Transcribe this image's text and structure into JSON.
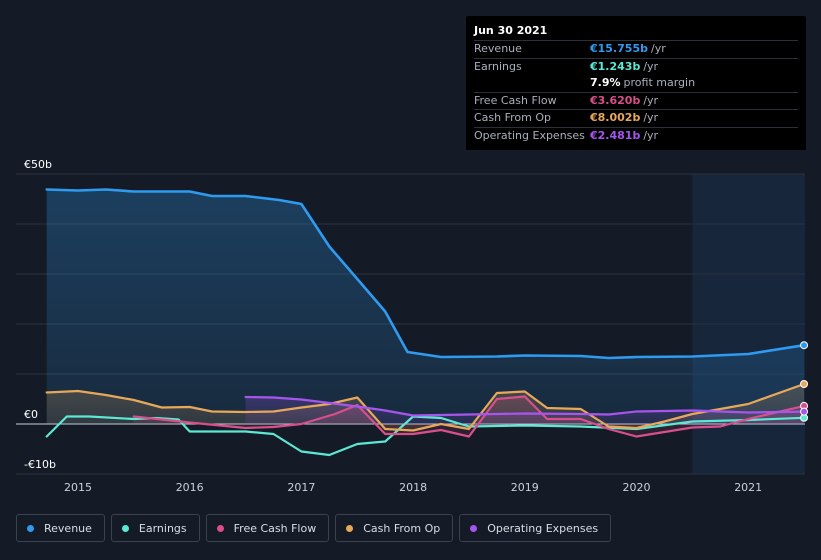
{
  "tooltip": {
    "date": "Jun 30 2021",
    "rows": [
      {
        "name": "Revenue",
        "value": "€15.755b",
        "unit": "/yr",
        "color": "#2e9bf0"
      },
      {
        "name": "Earnings",
        "value": "€1.243b",
        "unit": "/yr",
        "color": "#5de8d4"
      },
      {
        "name": "",
        "value": "7.9%",
        "unit": "profit margin",
        "color": "#ffffff"
      },
      {
        "name": "Free Cash Flow",
        "value": "€3.620b",
        "unit": "/yr",
        "color": "#d94f8c"
      },
      {
        "name": "Cash From Op",
        "value": "€8.002b",
        "unit": "/yr",
        "color": "#e8a85a"
      },
      {
        "name": "Operating Expenses",
        "value": "€2.481b",
        "unit": "/yr",
        "color": "#a855f0"
      }
    ]
  },
  "legend": [
    {
      "label": "Revenue",
      "color": "#2e9bf0"
    },
    {
      "label": "Earnings",
      "color": "#5de8d4"
    },
    {
      "label": "Free Cash Flow",
      "color": "#d94f8c"
    },
    {
      "label": "Cash From Op",
      "color": "#e8a85a"
    },
    {
      "label": "Operating Expenses",
      "color": "#a855f0"
    }
  ],
  "chart_data": {
    "type": "line",
    "ylim": [
      -10,
      50
    ],
    "y_tick_labels": [
      {
        "value": 50,
        "label": "€50b"
      },
      {
        "value": 0,
        "label": "€0"
      },
      {
        "value": -10,
        "label": "-€10b"
      }
    ],
    "xlim": [
      2014.72,
      2021.5
    ],
    "x_ticks": [
      2015,
      2016,
      2017,
      2018,
      2019,
      2020,
      2021
    ],
    "x_tick_labels": [
      "2015",
      "2016",
      "2017",
      "2018",
      "2019",
      "2020",
      "2021"
    ],
    "highlight_start": 2020.5,
    "grid": true,
    "series": [
      {
        "name": "Revenue",
        "color": "#2e9bf0",
        "fill": true,
        "points": [
          [
            2014.72,
            46.9
          ],
          [
            2015.0,
            46.7
          ],
          [
            2015.25,
            46.9
          ],
          [
            2015.5,
            46.5
          ],
          [
            2016.0,
            46.5
          ],
          [
            2016.2,
            45.6
          ],
          [
            2016.5,
            45.6
          ],
          [
            2016.8,
            44.8
          ],
          [
            2017.0,
            44.0
          ],
          [
            2017.25,
            35.5
          ],
          [
            2017.5,
            29.0
          ],
          [
            2017.75,
            22.5
          ],
          [
            2017.95,
            14.4
          ],
          [
            2018.25,
            13.4
          ],
          [
            2018.75,
            13.5
          ],
          [
            2019.0,
            13.7
          ],
          [
            2019.5,
            13.6
          ],
          [
            2019.75,
            13.2
          ],
          [
            2020.0,
            13.4
          ],
          [
            2020.5,
            13.5
          ],
          [
            2021.0,
            14.0
          ],
          [
            2021.5,
            15.755
          ]
        ]
      },
      {
        "name": "Earnings",
        "color": "#5de8d4",
        "fill": false,
        "points": [
          [
            2014.72,
            -2.5
          ],
          [
            2014.9,
            1.5
          ],
          [
            2015.1,
            1.5
          ],
          [
            2015.5,
            1.0
          ],
          [
            2015.7,
            1.2
          ],
          [
            2015.9,
            0.9
          ],
          [
            2016.0,
            -1.5
          ],
          [
            2016.5,
            -1.5
          ],
          [
            2016.75,
            -2.0
          ],
          [
            2017.0,
            -5.5
          ],
          [
            2017.25,
            -6.2
          ],
          [
            2017.5,
            -4.0
          ],
          [
            2017.75,
            -3.5
          ],
          [
            2018.0,
            1.5
          ],
          [
            2018.25,
            1.2
          ],
          [
            2018.5,
            -0.5
          ],
          [
            2019.0,
            -0.3
          ],
          [
            2019.5,
            -0.5
          ],
          [
            2020.0,
            -1.0
          ],
          [
            2020.5,
            0.5
          ],
          [
            2021.0,
            0.8
          ],
          [
            2021.5,
            1.243
          ]
        ]
      },
      {
        "name": "Free Cash Flow",
        "color": "#d94f8c",
        "fill": true,
        "points": [
          [
            2015.5,
            1.5
          ],
          [
            2016.0,
            0.3
          ],
          [
            2016.5,
            -0.8
          ],
          [
            2016.75,
            -0.6
          ],
          [
            2017.0,
            0.0
          ],
          [
            2017.3,
            2.0
          ],
          [
            2017.5,
            3.8
          ],
          [
            2017.75,
            -2.0
          ],
          [
            2018.0,
            -2.0
          ],
          [
            2018.25,
            -1.2
          ],
          [
            2018.5,
            -2.5
          ],
          [
            2018.75,
            5.0
          ],
          [
            2019.0,
            5.5
          ],
          [
            2019.2,
            1.0
          ],
          [
            2019.5,
            1.0
          ],
          [
            2019.75,
            -1.0
          ],
          [
            2020.0,
            -2.5
          ],
          [
            2020.5,
            -0.7
          ],
          [
            2020.75,
            -0.5
          ],
          [
            2021.0,
            1.0
          ],
          [
            2021.5,
            3.62
          ]
        ]
      },
      {
        "name": "Cash From Op",
        "color": "#e8a85a",
        "fill": true,
        "points": [
          [
            2014.72,
            6.3
          ],
          [
            2015.0,
            6.6
          ],
          [
            2015.25,
            5.8
          ],
          [
            2015.5,
            4.8
          ],
          [
            2015.75,
            3.3
          ],
          [
            2016.0,
            3.4
          ],
          [
            2016.2,
            2.5
          ],
          [
            2016.5,
            2.4
          ],
          [
            2016.75,
            2.5
          ],
          [
            2017.0,
            3.3
          ],
          [
            2017.25,
            4.0
          ],
          [
            2017.5,
            5.3
          ],
          [
            2017.75,
            -1.0
          ],
          [
            2018.0,
            -1.3
          ],
          [
            2018.25,
            0.0
          ],
          [
            2018.5,
            -1.0
          ],
          [
            2018.75,
            6.2
          ],
          [
            2019.0,
            6.5
          ],
          [
            2019.2,
            3.2
          ],
          [
            2019.5,
            3.0
          ],
          [
            2019.75,
            -0.5
          ],
          [
            2020.0,
            -0.8
          ],
          [
            2020.25,
            0.5
          ],
          [
            2020.5,
            2.0
          ],
          [
            2021.0,
            4.0
          ],
          [
            2021.5,
            8.002
          ]
        ]
      },
      {
        "name": "Operating Expenses",
        "color": "#a855f0",
        "fill": true,
        "points": [
          [
            2016.5,
            5.4
          ],
          [
            2016.75,
            5.3
          ],
          [
            2017.0,
            4.9
          ],
          [
            2017.25,
            4.2
          ],
          [
            2017.5,
            3.5
          ],
          [
            2017.75,
            2.7
          ],
          [
            2018.0,
            1.7
          ],
          [
            2018.5,
            1.9
          ],
          [
            2019.0,
            2.1
          ],
          [
            2019.5,
            2.0
          ],
          [
            2019.75,
            1.9
          ],
          [
            2020.0,
            2.5
          ],
          [
            2020.5,
            2.7
          ],
          [
            2021.0,
            2.3
          ],
          [
            2021.5,
            2.481
          ]
        ]
      }
    ]
  }
}
